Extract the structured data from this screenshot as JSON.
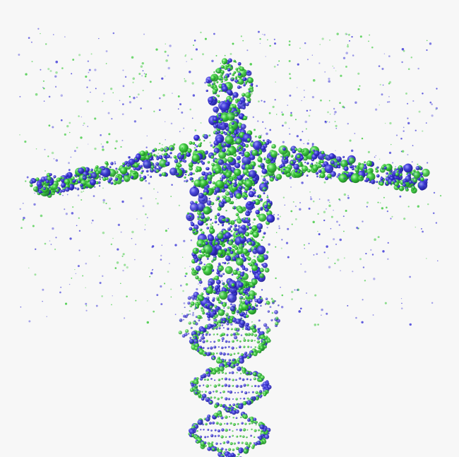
{
  "image": {
    "background_color": "#f7f7f7",
    "colors": {
      "blue": "#3b36d8",
      "green": "#39c93a",
      "dark_blue": "#1c1a8f",
      "dark_green": "#1a7d22"
    },
    "subject": {
      "figure_icon": "human-figure-icon",
      "helix_icon": "dna-helix-icon",
      "particle_icon": "particle-dot-icon"
    }
  }
}
